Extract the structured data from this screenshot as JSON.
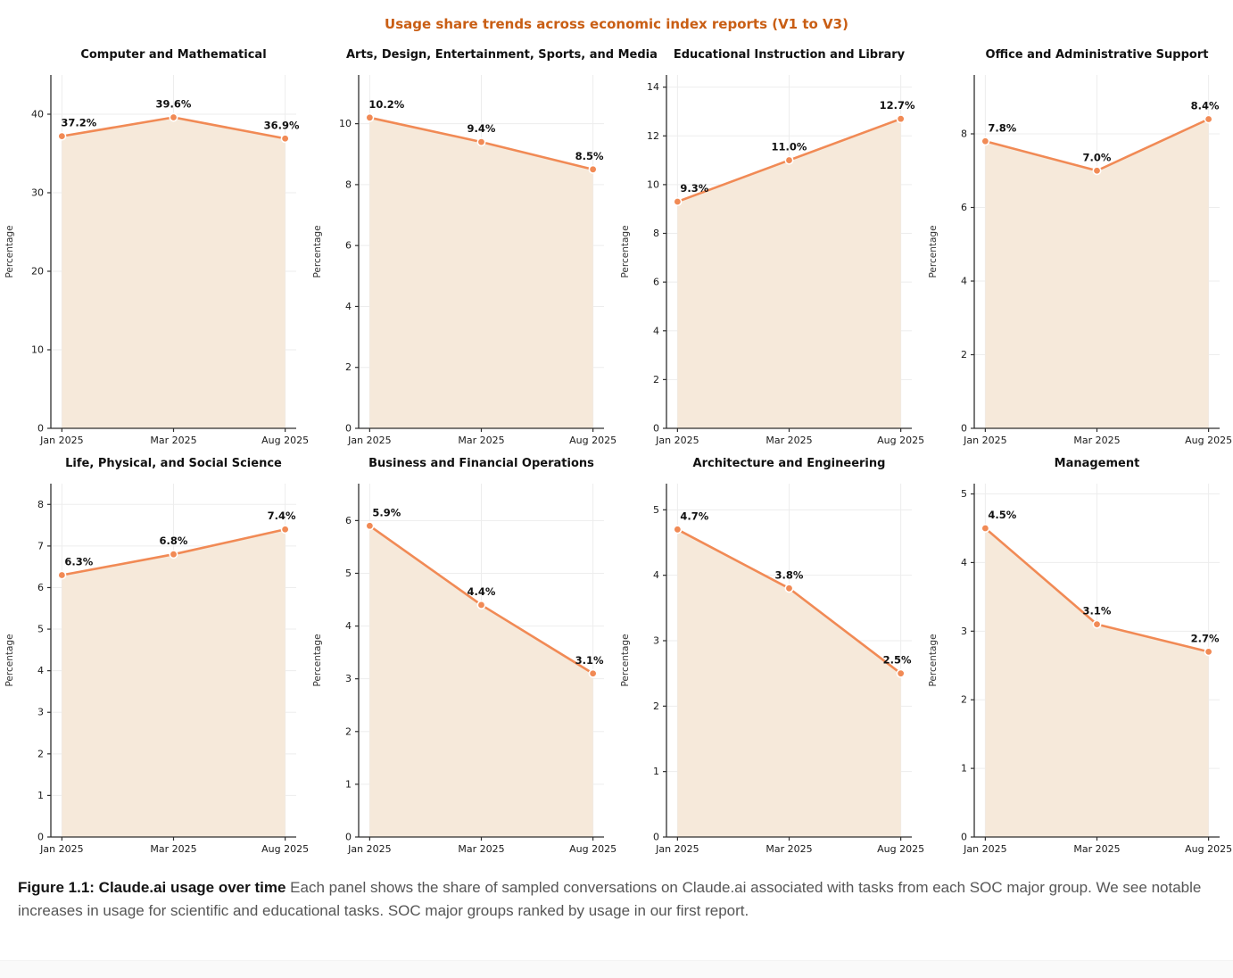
{
  "figure": {
    "title": "Usage share trends across economic index reports (V1 to V3)"
  },
  "style": {
    "title_color": "#C95E14",
    "line_color": "#F18A55",
    "fill_color": "#F6E9DA",
    "grid_color": "#EDEDED",
    "axis_color": "#2F2F2F",
    "label_color": "#111111",
    "caption_color": "#565656",
    "footer_color": "#FAFAFA"
  },
  "caption": {
    "bold": "Figure 1.1: Claude.ai usage over time",
    "text": " Each panel shows the share of sampled conversations on Claude.ai associated with tasks from each SOC major group. We see notable increases in usage for scientific and educational tasks. SOC major groups ranked by usage in our first report."
  },
  "chart_data": [
    {
      "type": "area",
      "title": "Computer and Mathematical",
      "categories": [
        "Jan 2025",
        "Mar 2025",
        "Aug 2025"
      ],
      "values": [
        37.2,
        39.6,
        36.9
      ],
      "labels": [
        "37.2%",
        "39.6%",
        "36.9%"
      ],
      "xlabel": "",
      "ylabel": "Percentage",
      "ylim": [
        0,
        45
      ],
      "yticks": [
        0,
        10,
        20,
        30,
        40
      ],
      "grid": true,
      "legend": "none"
    },
    {
      "type": "area",
      "title": "Arts, Design, Entertainment, Sports, and Media",
      "categories": [
        "Jan 2025",
        "Mar 2025",
        "Aug 2025"
      ],
      "values": [
        10.2,
        9.4,
        8.5
      ],
      "labels": [
        "10.2%",
        "9.4%",
        "8.5%"
      ],
      "xlabel": "",
      "ylabel": "Percentage",
      "ylim": [
        0,
        11.6
      ],
      "yticks": [
        0,
        2,
        4,
        6,
        8,
        10
      ],
      "grid": true,
      "legend": "none"
    },
    {
      "type": "area",
      "title": "Educational Instruction and Library",
      "categories": [
        "Jan 2025",
        "Mar 2025",
        "Aug 2025"
      ],
      "values": [
        9.3,
        11.0,
        12.7
      ],
      "labels": [
        "9.3%",
        "11.0%",
        "12.7%"
      ],
      "xlabel": "",
      "ylabel": "Percentage",
      "ylim": [
        0,
        14.5
      ],
      "yticks": [
        0,
        2,
        4,
        6,
        8,
        10,
        12,
        14
      ],
      "grid": true,
      "legend": "none"
    },
    {
      "type": "area",
      "title": "Office and Administrative Support",
      "categories": [
        "Jan 2025",
        "Mar 2025",
        "Aug 2025"
      ],
      "values": [
        7.8,
        7.0,
        8.4
      ],
      "labels": [
        "7.8%",
        "7.0%",
        "8.4%"
      ],
      "xlabel": "",
      "ylabel": "Percentage",
      "ylim": [
        0,
        9.6
      ],
      "yticks": [
        0,
        2,
        4,
        6,
        8
      ],
      "grid": true,
      "legend": "none"
    },
    {
      "type": "area",
      "title": "Life, Physical, and Social Science",
      "categories": [
        "Jan 2025",
        "Mar 2025",
        "Aug 2025"
      ],
      "values": [
        6.3,
        6.8,
        7.4
      ],
      "labels": [
        "6.3%",
        "6.8%",
        "7.4%"
      ],
      "xlabel": "",
      "ylabel": "Percentage",
      "ylim": [
        0,
        8.5
      ],
      "yticks": [
        0,
        1,
        2,
        3,
        4,
        5,
        6,
        7,
        8
      ],
      "grid": true,
      "legend": "none"
    },
    {
      "type": "area",
      "title": "Business and Financial Operations",
      "categories": [
        "Jan 2025",
        "Mar 2025",
        "Aug 2025"
      ],
      "values": [
        5.9,
        4.4,
        3.1
      ],
      "labels": [
        "5.9%",
        "4.4%",
        "3.1%"
      ],
      "xlabel": "",
      "ylabel": "Percentage",
      "ylim": [
        0,
        6.7
      ],
      "yticks": [
        0,
        1,
        2,
        3,
        4,
        5,
        6
      ],
      "grid": true,
      "legend": "none"
    },
    {
      "type": "area",
      "title": "Architecture and Engineering",
      "categories": [
        "Jan 2025",
        "Mar 2025",
        "Aug 2025"
      ],
      "values": [
        4.7,
        3.8,
        2.5
      ],
      "labels": [
        "4.7%",
        "3.8%",
        "2.5%"
      ],
      "xlabel": "",
      "ylabel": "Percentage",
      "ylim": [
        0,
        5.4
      ],
      "yticks": [
        0,
        1,
        2,
        3,
        4,
        5
      ],
      "grid": true,
      "legend": "none"
    },
    {
      "type": "area",
      "title": "Management",
      "categories": [
        "Jan 2025",
        "Mar 2025",
        "Aug 2025"
      ],
      "values": [
        4.5,
        3.1,
        2.7
      ],
      "labels": [
        "4.5%",
        "3.1%",
        "2.7%"
      ],
      "xlabel": "",
      "ylabel": "Percentage",
      "ylim": [
        0,
        5.15
      ],
      "yticks": [
        0,
        1,
        2,
        3,
        4,
        5
      ],
      "grid": true,
      "legend": "none"
    }
  ]
}
